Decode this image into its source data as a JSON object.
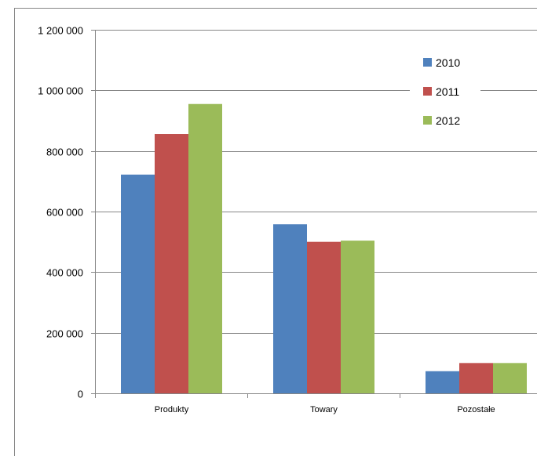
{
  "chart_data": {
    "type": "bar",
    "title": "",
    "xlabel": "",
    "ylabel": "",
    "categories": [
      "Produkty",
      "Towary",
      "Pozostałe"
    ],
    "series": [
      {
        "name": "2010",
        "color": "#4f81bd",
        "values": [
          722000,
          558000,
          73000
        ]
      },
      {
        "name": "2011",
        "color": "#c0504d",
        "values": [
          856000,
          500000,
          100000
        ]
      },
      {
        "name": "2012",
        "color": "#9bbb59",
        "values": [
          955000,
          504000,
          100000
        ]
      }
    ],
    "ylim": [
      0,
      1200000
    ],
    "yticks": [
      0,
      200000,
      400000,
      600000,
      800000,
      1000000,
      1200000
    ],
    "ytick_labels": [
      "0",
      "200 000",
      "400 000",
      "600 000",
      "800 000",
      "1 000 000",
      "1 200 000"
    ],
    "grid": true,
    "legend_position": "top-right",
    "colors": {
      "gridline": "#868686",
      "axis": "#868686",
      "frame": "#868686"
    }
  }
}
